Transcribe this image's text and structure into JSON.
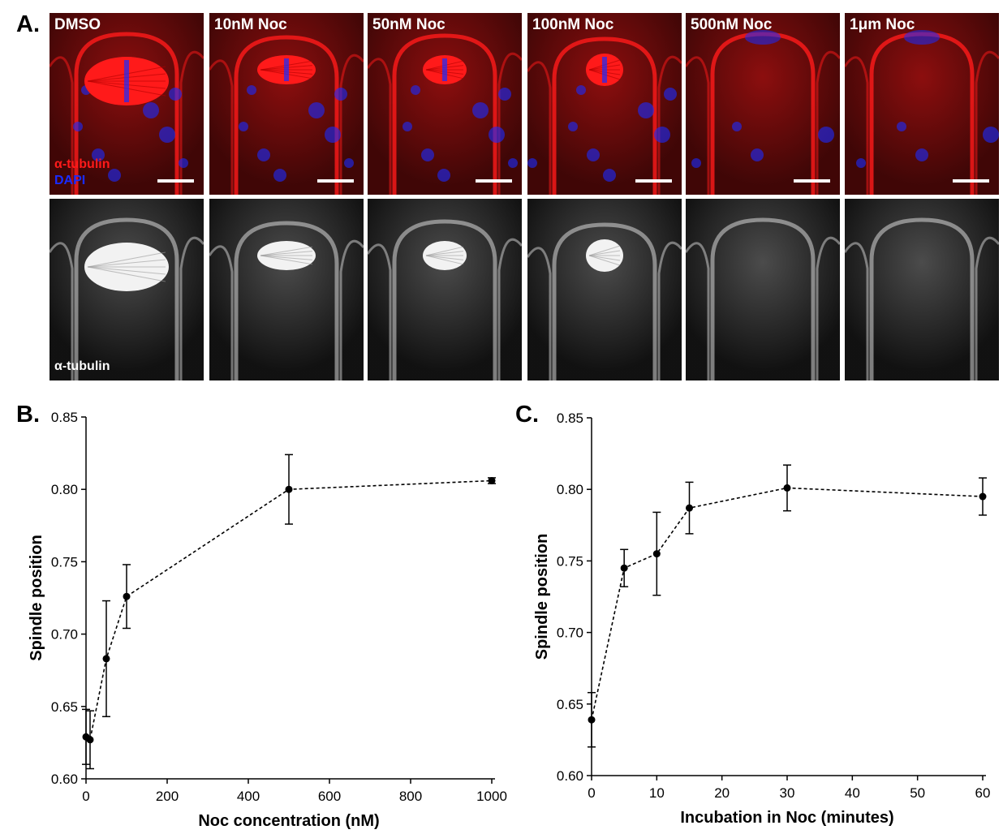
{
  "panel_a": {
    "label": "A.",
    "conditions": [
      "DMSO",
      "10nM Noc",
      "50nM Noc",
      "100nM Noc",
      "500nM Noc",
      "1μm Noc"
    ],
    "legend_top": {
      "line1": "α-tubulin",
      "line2": "DAPI"
    },
    "legend_bottom": "α-tubulin",
    "colors": {
      "tubulin": "#ff1a1a",
      "dapi": "#1a2cff",
      "mono": "#ffffff"
    }
  },
  "panel_b": {
    "label": "B.",
    "chart_data": {
      "type": "line",
      "xlabel": "Noc concentration (nM)",
      "ylabel": "Spindle position",
      "xlim": [
        0,
        1000
      ],
      "ylim": [
        0.6,
        0.85
      ],
      "xticks": [
        0,
        200,
        400,
        600,
        800,
        1000
      ],
      "yticks": [
        0.6,
        0.65,
        0.7,
        0.75,
        0.8,
        0.85
      ],
      "ytick_labels": [
        "0.60",
        "0.65",
        "0.70",
        "0.75",
        "0.80",
        "0.85"
      ],
      "x": [
        0,
        10,
        50,
        100,
        500,
        1000
      ],
      "y": [
        0.629,
        0.627,
        0.683,
        0.726,
        0.8,
        0.806
      ],
      "err": [
        0.019,
        0.02,
        0.04,
        0.022,
        0.024,
        0.002
      ],
      "line_style": "dashed"
    }
  },
  "panel_c": {
    "label": "C.",
    "chart_data": {
      "type": "line",
      "xlabel": "Incubation in Noc  (minutes)",
      "ylabel": "Spindle position",
      "xlim": [
        0,
        60
      ],
      "ylim": [
        0.6,
        0.85
      ],
      "xticks": [
        0,
        10,
        20,
        30,
        40,
        50,
        60
      ],
      "yticks": [
        0.6,
        0.65,
        0.7,
        0.75,
        0.8,
        0.85
      ],
      "ytick_labels": [
        "0.60",
        "0.65",
        "0.70",
        "0.75",
        "0.80",
        "0.85"
      ],
      "x": [
        0,
        5,
        10,
        15,
        30,
        60
      ],
      "y": [
        0.639,
        0.745,
        0.755,
        0.787,
        0.801,
        0.795
      ],
      "err": [
        0.019,
        0.013,
        0.029,
        0.018,
        0.016,
        0.013
      ],
      "line_style": "dashed"
    }
  }
}
